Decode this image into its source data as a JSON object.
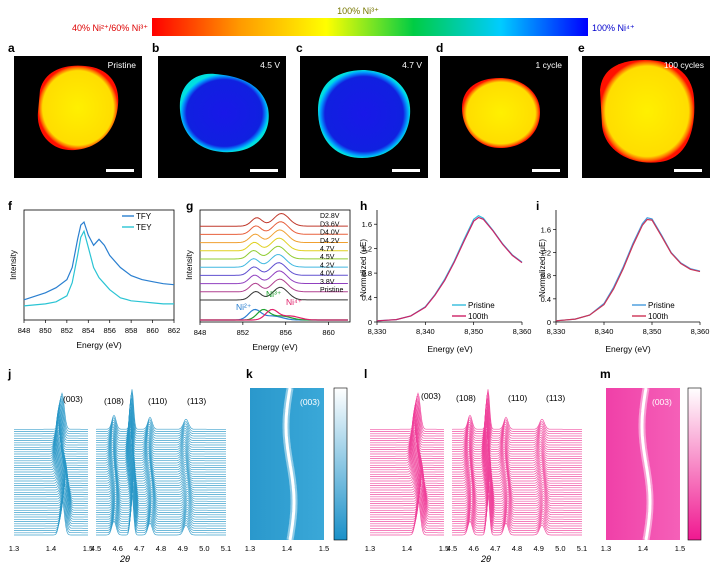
{
  "colorbar": {
    "left_label": "40% Ni²⁺/60% Ni³⁺",
    "mid_label": "100% Ni³⁺",
    "right_label": "100% Ni⁴⁺",
    "colors": [
      "#ff0000",
      "#ff9900",
      "#ffff00",
      "#00cc44",
      "#00ccff",
      "#0000ff"
    ]
  },
  "images": [
    {
      "letter": "a",
      "label": "Pristine",
      "fill": "#ffe600",
      "edge": "#ff2000"
    },
    {
      "letter": "b",
      "label": "4.5 V",
      "fill": "#1010e0",
      "edge": "#00d0ff"
    },
    {
      "letter": "c",
      "label": "4.7 V",
      "fill": "#1020e0",
      "edge": "#00d0ff"
    },
    {
      "letter": "d",
      "label": "1 cycle",
      "fill": "#ffe600",
      "edge": "#ff2000"
    },
    {
      "letter": "e",
      "label": "100 cycles",
      "fill": "#ffe600",
      "edge": "#ff2000"
    }
  ],
  "chart_data": [
    {
      "panel": "f",
      "type": "line",
      "xlabel": "Energy (eV)",
      "ylabel": "Intensity",
      "xlim": [
        848,
        862
      ],
      "xticks": [
        "848",
        "850",
        "852",
        "854",
        "856",
        "858",
        "860",
        "862"
      ],
      "series": [
        {
          "name": "TFY",
          "color": "#2a7fd0",
          "x": [
            848,
            850,
            851,
            852,
            852.5,
            853,
            853.3,
            853.6,
            854,
            854.5,
            855,
            855.5,
            856,
            857,
            858,
            859,
            860,
            861,
            862
          ],
          "y": [
            0.18,
            0.25,
            0.3,
            0.38,
            0.5,
            0.78,
            0.92,
            0.95,
            0.82,
            0.72,
            0.78,
            0.72,
            0.62,
            0.5,
            0.42,
            0.38,
            0.36,
            0.34,
            0.33
          ]
        },
        {
          "name": "TEY",
          "color": "#2ac4d4",
          "x": [
            848,
            850,
            851,
            852,
            852.5,
            853,
            853.3,
            853.6,
            854,
            854.5,
            855,
            855.5,
            856,
            857,
            858,
            859,
            860,
            861,
            862
          ],
          "y": [
            0.12,
            0.14,
            0.16,
            0.22,
            0.35,
            0.62,
            0.8,
            0.86,
            0.7,
            0.5,
            0.4,
            0.34,
            0.28,
            0.2,
            0.17,
            0.16,
            0.15,
            0.14,
            0.14
          ]
        }
      ]
    },
    {
      "panel": "g",
      "type": "line",
      "xlabel": "Energy (eV)",
      "ylabel": "Intensity",
      "xlim": [
        848,
        862
      ],
      "xticks": [
        "848",
        "852",
        "856",
        "860"
      ],
      "offset_labels": [
        "D2.8V",
        "D3.6V",
        "D4.0V",
        "D4.2V",
        "4.7V",
        "4.5V",
        "4.2V",
        "4.0V",
        "3.8V",
        "Pristine"
      ],
      "offset_colors": [
        "#c0392b",
        "#e8603c",
        "#f0a030",
        "#e0d020",
        "#90cc30",
        "#40b8e0",
        "#6050d0",
        "#9040c0",
        "#b04090",
        "#333333"
      ],
      "reference_labels": [
        "Ni²⁺",
        "Ni³⁺",
        "Ni⁴⁺"
      ],
      "reference_colors": [
        "#2a7fd0",
        "#20a030",
        "#e0206a"
      ]
    },
    {
      "panel": "h",
      "type": "line",
      "xlabel": "Energy (eV)",
      "ylabel": "Normalized (μE)",
      "xlim": [
        8330,
        8360
      ],
      "ylim": [
        0,
        1.8
      ],
      "xticks": [
        "8,330",
        "8,340",
        "8,350",
        "8,360"
      ],
      "yticks": [
        "0",
        "0.4",
        "0.8",
        "1.2",
        "1.6"
      ],
      "series": [
        {
          "name": "Pristine",
          "color": "#33bbdd",
          "x": [
            8330,
            8334,
            8337,
            8340,
            8342,
            8344,
            8346,
            8348,
            8350,
            8351,
            8352,
            8354,
            8356,
            8358,
            8360
          ],
          "y": [
            0.02,
            0.04,
            0.1,
            0.25,
            0.45,
            0.7,
            1.0,
            1.35,
            1.68,
            1.74,
            1.7,
            1.5,
            1.28,
            1.1,
            0.98
          ]
        },
        {
          "name": "100th",
          "color": "#cc2266",
          "x": [
            8330,
            8334,
            8337,
            8340,
            8342,
            8344,
            8346,
            8348,
            8350,
            8351,
            8352,
            8354,
            8356,
            8358,
            8360
          ],
          "y": [
            0.02,
            0.04,
            0.1,
            0.24,
            0.44,
            0.68,
            0.98,
            1.32,
            1.65,
            1.71,
            1.68,
            1.49,
            1.27,
            1.09,
            0.97
          ]
        }
      ]
    },
    {
      "panel": "i",
      "type": "line",
      "xlabel": "Energy (eV)",
      "ylabel": "Normalized (μE)",
      "xlim": [
        8330,
        8360
      ],
      "ylim": [
        0,
        1.9
      ],
      "xticks": [
        "8,330",
        "8,340",
        "8,350",
        "8,360"
      ],
      "yticks": [
        "0",
        "0.4",
        "0.8",
        "1.2",
        "1.6"
      ],
      "series": [
        {
          "name": "Pristine",
          "color": "#4499dd",
          "x": [
            8330,
            8334,
            8337,
            8340,
            8342,
            8344,
            8346,
            8348,
            8349,
            8350,
            8352,
            8354,
            8356,
            8358,
            8360
          ],
          "y": [
            0.02,
            0.05,
            0.12,
            0.32,
            0.6,
            0.95,
            1.35,
            1.7,
            1.8,
            1.78,
            1.5,
            1.2,
            1.02,
            0.92,
            0.88
          ]
        },
        {
          "name": "100th",
          "color": "#cc3355",
          "x": [
            8330,
            8334,
            8337,
            8340,
            8342,
            8344,
            8346,
            8348,
            8349,
            8350,
            8352,
            8354,
            8356,
            8358,
            8360
          ],
          "y": [
            0.02,
            0.05,
            0.12,
            0.3,
            0.57,
            0.92,
            1.32,
            1.67,
            1.77,
            1.76,
            1.48,
            1.19,
            1.01,
            0.91,
            0.87
          ]
        }
      ]
    },
    {
      "panel": "j",
      "type": "line",
      "color": "#2a98c8",
      "xlabel": "2θ",
      "xticks_left": [
        "1.3",
        "1.4",
        "1.5"
      ],
      "xticks_right": [
        "4.5",
        "4.6",
        "4.7",
        "4.8",
        "4.9",
        "5.0",
        "5.1"
      ],
      "peak_labels": [
        "(003)",
        "(108)",
        "(110)",
        "(113)"
      ]
    },
    {
      "panel": "k",
      "type": "heatmap",
      "color": "#2a98c8",
      "xticks": [
        "1.3",
        "1.4",
        "1.5"
      ],
      "peak_label": "(003)"
    },
    {
      "panel": "l",
      "type": "line",
      "color": "#f0409a",
      "xlabel": "2θ",
      "xticks_left": [
        "1.3",
        "1.4",
        "1.5"
      ],
      "xticks_right": [
        "4.5",
        "4.6",
        "4.7",
        "4.8",
        "4.9",
        "5.0",
        "5.1"
      ],
      "peak_labels": [
        "(003)",
        "(108)",
        "(110)",
        "(113)"
      ]
    },
    {
      "panel": "m",
      "type": "heatmap",
      "color": "#f0409a",
      "xticks": [
        "1.3",
        "1.4",
        "1.5"
      ],
      "peak_label": "(003)"
    }
  ]
}
